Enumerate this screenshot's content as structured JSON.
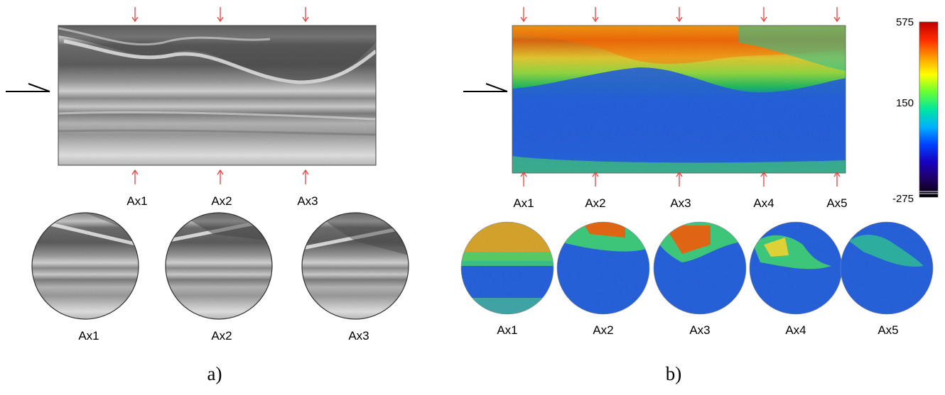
{
  "panel_a": {
    "caption": "a)",
    "section_labels": [
      "Ax1",
      "Ax2",
      "Ax3"
    ],
    "slice_labels": [
      "Ax1",
      "Ax2",
      "Ax3"
    ]
  },
  "panel_b": {
    "caption": "b)",
    "section_labels": [
      "Ax1",
      "Ax2",
      "Ax3",
      "Ax4",
      "Ax5"
    ],
    "slice_labels": [
      "Ax1",
      "Ax2",
      "Ax3",
      "Ax4",
      "Ax5"
    ],
    "colorbar": {
      "ticks": [
        "575",
        "150",
        "-275"
      ],
      "max": 575,
      "mid": 150,
      "min": -275,
      "colors": [
        "#c00000",
        "#ff2a00",
        "#ff9900",
        "#ffff00",
        "#66ff33",
        "#00e6a0",
        "#00b0ff",
        "#0040ff",
        "#1800c0",
        "#200060",
        "#000000"
      ]
    }
  },
  "colors": {
    "arrow_red": "#e8403a",
    "pointer": "#000000"
  }
}
